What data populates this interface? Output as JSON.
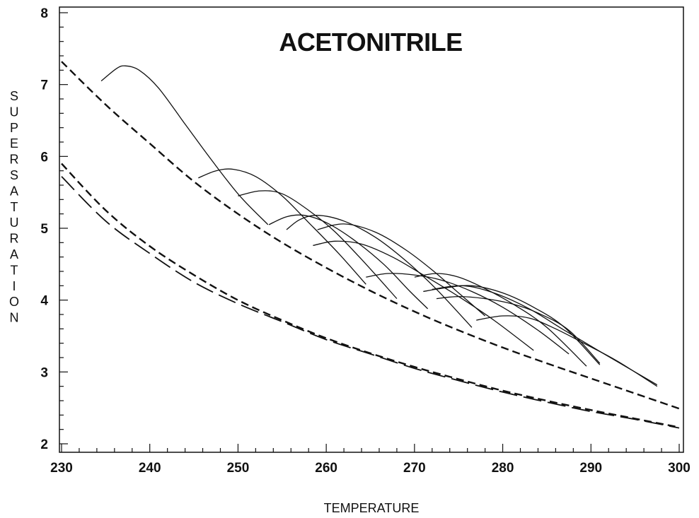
{
  "chart_data": {
    "type": "line",
    "title": "ACETONITRILE",
    "xlabel": "TEMPERATURE",
    "ylabel": "SUPERSATURATION",
    "xlim": [
      230,
      300
    ],
    "ylim": [
      2,
      8
    ],
    "xticks": [
      230,
      240,
      250,
      260,
      270,
      280,
      290,
      300
    ],
    "yticks": [
      2,
      3,
      4,
      5,
      6,
      7,
      8
    ],
    "grid": false,
    "legend": "none",
    "series": [
      {
        "style": "short-dash",
        "x": [
          230,
          235,
          240,
          245,
          250,
          255,
          260,
          265,
          270,
          275,
          280,
          285,
          290,
          295,
          300
        ],
        "y": [
          7.32,
          6.72,
          6.18,
          5.65,
          5.2,
          4.8,
          4.45,
          4.13,
          3.84,
          3.58,
          3.34,
          3.12,
          2.91,
          2.7,
          2.49
        ]
      },
      {
        "style": "short-dash",
        "x": [
          230,
          235,
          240,
          245,
          250,
          255,
          260,
          265,
          270,
          275,
          280,
          285,
          290,
          295,
          300
        ],
        "y": [
          5.9,
          5.25,
          4.75,
          4.35,
          4.0,
          3.72,
          3.47,
          3.26,
          3.07,
          2.9,
          2.74,
          2.6,
          2.47,
          2.35,
          2.23
        ]
      },
      {
        "style": "long-dash",
        "x": [
          230,
          235,
          240,
          245,
          250,
          255,
          260,
          265,
          270,
          275,
          280,
          285,
          290,
          295,
          300
        ],
        "y": [
          5.72,
          5.1,
          4.65,
          4.25,
          3.95,
          3.7,
          3.45,
          3.25,
          3.05,
          2.88,
          2.72,
          2.58,
          2.45,
          2.34,
          2.22
        ]
      },
      {
        "style": "solid",
        "x": [
          234.5,
          236.2,
          237.2,
          238.8,
          241,
          244,
          247,
          250.2,
          253.4
        ],
        "y": [
          7.05,
          7.22,
          7.26,
          7.2,
          6.95,
          6.45,
          5.95,
          5.45,
          5.05
        ]
      },
      {
        "style": "solid",
        "x": [
          245.5,
          247.5,
          249.5,
          252,
          255,
          258,
          261.4,
          264.5
        ],
        "y": [
          5.7,
          5.8,
          5.82,
          5.72,
          5.45,
          5.08,
          4.65,
          4.22
        ]
      },
      {
        "style": "solid",
        "x": [
          250,
          252.5,
          255,
          258,
          261,
          264.5,
          268
        ],
        "y": [
          5.45,
          5.52,
          5.48,
          5.25,
          4.95,
          4.5,
          4.02
        ]
      },
      {
        "style": "solid",
        "x": [
          253.5,
          255.5,
          257.5,
          260,
          263,
          266.5,
          269.5,
          271.5
        ],
        "y": [
          5.05,
          5.16,
          5.18,
          5.08,
          4.85,
          4.5,
          4.12,
          3.88
        ]
      },
      {
        "style": "solid",
        "x": [
          255.5,
          257,
          259,
          262,
          265.5,
          269,
          272.5,
          276.5
        ],
        "y": [
          4.98,
          5.12,
          5.18,
          5.1,
          4.88,
          4.55,
          4.15,
          3.62
        ]
      },
      {
        "style": "solid",
        "x": [
          259,
          262,
          265.5,
          269,
          272,
          275,
          278
        ],
        "y": [
          4.98,
          5.06,
          4.95,
          4.7,
          4.42,
          4.1,
          3.78
        ]
      },
      {
        "style": "solid",
        "x": [
          258.5,
          261,
          264,
          267.5,
          271,
          275,
          279,
          283.5
        ],
        "y": [
          4.76,
          4.82,
          4.78,
          4.6,
          4.35,
          4.05,
          3.72,
          3.3
        ]
      },
      {
        "style": "solid",
        "x": [
          264.5,
          267,
          270,
          273,
          276.5,
          280,
          284,
          287.5
        ],
        "y": [
          4.32,
          4.37,
          4.35,
          4.28,
          4.12,
          3.9,
          3.58,
          3.25
        ]
      },
      {
        "style": "solid",
        "x": [
          270,
          272.5,
          275,
          278,
          281.5,
          285,
          289.5
        ],
        "y": [
          4.32,
          4.37,
          4.32,
          4.16,
          3.92,
          3.62,
          3.08
        ]
      },
      {
        "style": "solid",
        "x": [
          271,
          273.5,
          276.5,
          280,
          283.5,
          287,
          291
        ],
        "y": [
          4.12,
          4.17,
          4.2,
          4.1,
          3.9,
          3.62,
          3.1
        ]
      },
      {
        "style": "solid",
        "x": [
          272.5,
          275,
          278,
          281,
          284,
          287.5,
          291
        ],
        "y": [
          4.02,
          4.05,
          4.02,
          3.95,
          3.82,
          3.58,
          3.12
        ]
      },
      {
        "style": "solid",
        "x": [
          277,
          280,
          283,
          286,
          289.5,
          293,
          297.5
        ],
        "y": [
          3.72,
          3.78,
          3.75,
          3.6,
          3.38,
          3.15,
          2.8
        ]
      },
      {
        "style": "solid",
        "x": [
          272,
          275.5,
          279,
          283,
          287,
          291.5,
          297.5
        ],
        "y": [
          4.15,
          4.2,
          4.1,
          3.88,
          3.58,
          3.25,
          2.82
        ]
      }
    ]
  }
}
